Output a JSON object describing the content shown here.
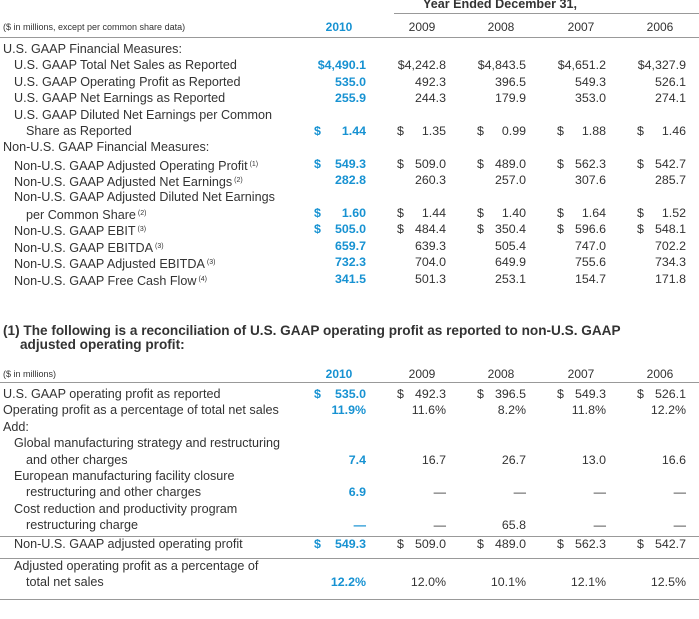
{
  "table1": {
    "super_header": "Year Ended December 31,",
    "unit_note": "($ in millions, except per common share data)",
    "years": [
      "2010",
      "2009",
      "2008",
      "2007",
      "2006"
    ],
    "rows": [
      {
        "label": "U.S. GAAP Financial Measures:",
        "sup": "",
        "indent": 0,
        "dollar": false,
        "values": []
      },
      {
        "label": "U.S. GAAP Total Net Sales as Reported",
        "sup": "",
        "indent": 1,
        "dollar": false,
        "values": [
          "$4,490.1",
          "$4,242.8",
          "$4,843.5",
          "$4,651.2",
          "$4,327.9"
        ]
      },
      {
        "label": "U.S. GAAP Operating Profit as Reported",
        "sup": "",
        "indent": 1,
        "dollar": false,
        "values": [
          "535.0",
          "492.3",
          "396.5",
          "549.3",
          "526.1"
        ]
      },
      {
        "label": "U.S. GAAP Net Earnings as Reported",
        "sup": "",
        "indent": 1,
        "dollar": false,
        "values": [
          "255.9",
          "244.3",
          "179.9",
          "353.0",
          "274.1"
        ]
      },
      {
        "label": "U.S. GAAP Diluted Net Earnings per Common",
        "sup": "",
        "indent": 1,
        "dollar": false,
        "values": []
      },
      {
        "label": "Share as Reported",
        "sup": "",
        "indent": 2,
        "dollar": true,
        "values": [
          "1.44",
          "1.35",
          "0.99",
          "1.88",
          "1.46"
        ]
      },
      {
        "label": "Non-U.S. GAAP Financial Measures:",
        "sup": "",
        "indent": 0,
        "dollar": false,
        "values": []
      },
      {
        "label": "Non-U.S. GAAP Adjusted Operating Profit",
        "sup": "(1)",
        "indent": 1,
        "dollar": true,
        "values": [
          "549.3",
          "509.0",
          "489.0",
          "562.3",
          "542.7"
        ]
      },
      {
        "label": "Non-U.S. GAAP Adjusted Net Earnings",
        "sup": "(2)",
        "indent": 1,
        "dollar": false,
        "values": [
          "282.8",
          "260.3",
          "257.0",
          "307.6",
          "285.7"
        ]
      },
      {
        "label": "Non-U.S. GAAP Adjusted Diluted Net Earnings",
        "sup": "",
        "indent": 1,
        "dollar": false,
        "values": []
      },
      {
        "label": "per Common Share",
        "sup": "(2)",
        "indent": 2,
        "dollar": true,
        "values": [
          "1.60",
          "1.44",
          "1.40",
          "1.64",
          "1.52"
        ]
      },
      {
        "label": "Non-U.S. GAAP EBIT",
        "sup": "(3)",
        "indent": 1,
        "dollar": true,
        "values": [
          "505.0",
          "484.4",
          "350.4",
          "596.6",
          "548.1"
        ]
      },
      {
        "label": "Non-U.S. GAAP EBITDA",
        "sup": "(3)",
        "indent": 1,
        "dollar": false,
        "values": [
          "659.7",
          "639.3",
          "505.4",
          "747.0",
          "702.2"
        ]
      },
      {
        "label": "Non-U.S. GAAP Adjusted EBITDA",
        "sup": "(3)",
        "indent": 1,
        "dollar": false,
        "values": [
          "732.3",
          "704.0",
          "649.9",
          "755.6",
          "734.3"
        ]
      },
      {
        "label": "Non-U.S. GAAP Free Cash Flow",
        "sup": "(4)",
        "indent": 1,
        "dollar": false,
        "values": [
          "341.5",
          "501.3",
          "253.1",
          "154.7",
          "171.8"
        ]
      }
    ]
  },
  "table2": {
    "title_line1": "(1) The following is a reconciliation of U.S. GAAP operating profit as reported to non-U.S. GAAP",
    "title_line2": "adjusted operating profit:",
    "unit_note": "($ in millions)",
    "years": [
      "2010",
      "2009",
      "2008",
      "2007",
      "2006"
    ],
    "rows": [
      {
        "label": "U.S. GAAP operating profit as reported",
        "indent": 0,
        "dollar": true,
        "values": [
          "535.0",
          "492.3",
          "396.5",
          "549.3",
          "526.1"
        ]
      },
      {
        "label": "Operating profit as a percentage of total net sales",
        "indent": 0,
        "dollar": false,
        "values": [
          "11.9%",
          "11.6%",
          "8.2%",
          "11.8%",
          "12.2%"
        ]
      },
      {
        "label": "Add:",
        "indent": 0,
        "dollar": false,
        "values": []
      },
      {
        "label": "Global manufacturing strategy and restructuring",
        "indent": 1,
        "dollar": false,
        "values": []
      },
      {
        "label": "and other charges",
        "indent": 2,
        "dollar": false,
        "values": [
          "7.4",
          "16.7",
          "26.7",
          "13.0",
          "16.6"
        ]
      },
      {
        "label": "European manufacturing facility closure",
        "indent": 1,
        "dollar": false,
        "values": []
      },
      {
        "label": "restructuring and other charges",
        "indent": 2,
        "dollar": false,
        "values": [
          "6.9",
          "—",
          "—",
          "—",
          "—"
        ]
      },
      {
        "label": "Cost reduction and productivity program",
        "indent": 1,
        "dollar": false,
        "values": []
      },
      {
        "label": "restructuring charge",
        "indent": 2,
        "dollar": false,
        "values": [
          "—",
          "—",
          "65.8",
          "—",
          "—"
        ]
      },
      {
        "label": "Non-U.S. GAAP adjusted operating profit",
        "indent": 1,
        "dollar": true,
        "values": [
          "549.3",
          "509.0",
          "489.0",
          "562.3",
          "542.7"
        ]
      },
      {
        "label": "Adjusted operating profit as a percentage of",
        "indent": 1,
        "dollar": false,
        "values": []
      },
      {
        "label": "total net sales",
        "indent": 2,
        "dollar": false,
        "values": [
          "12.2%",
          "12.0%",
          "10.1%",
          "12.1%",
          "12.5%"
        ]
      }
    ]
  },
  "currency_symbol": "$",
  "colors": {
    "accent": "#1792d2",
    "text": "#333333",
    "rule": "#999999"
  }
}
